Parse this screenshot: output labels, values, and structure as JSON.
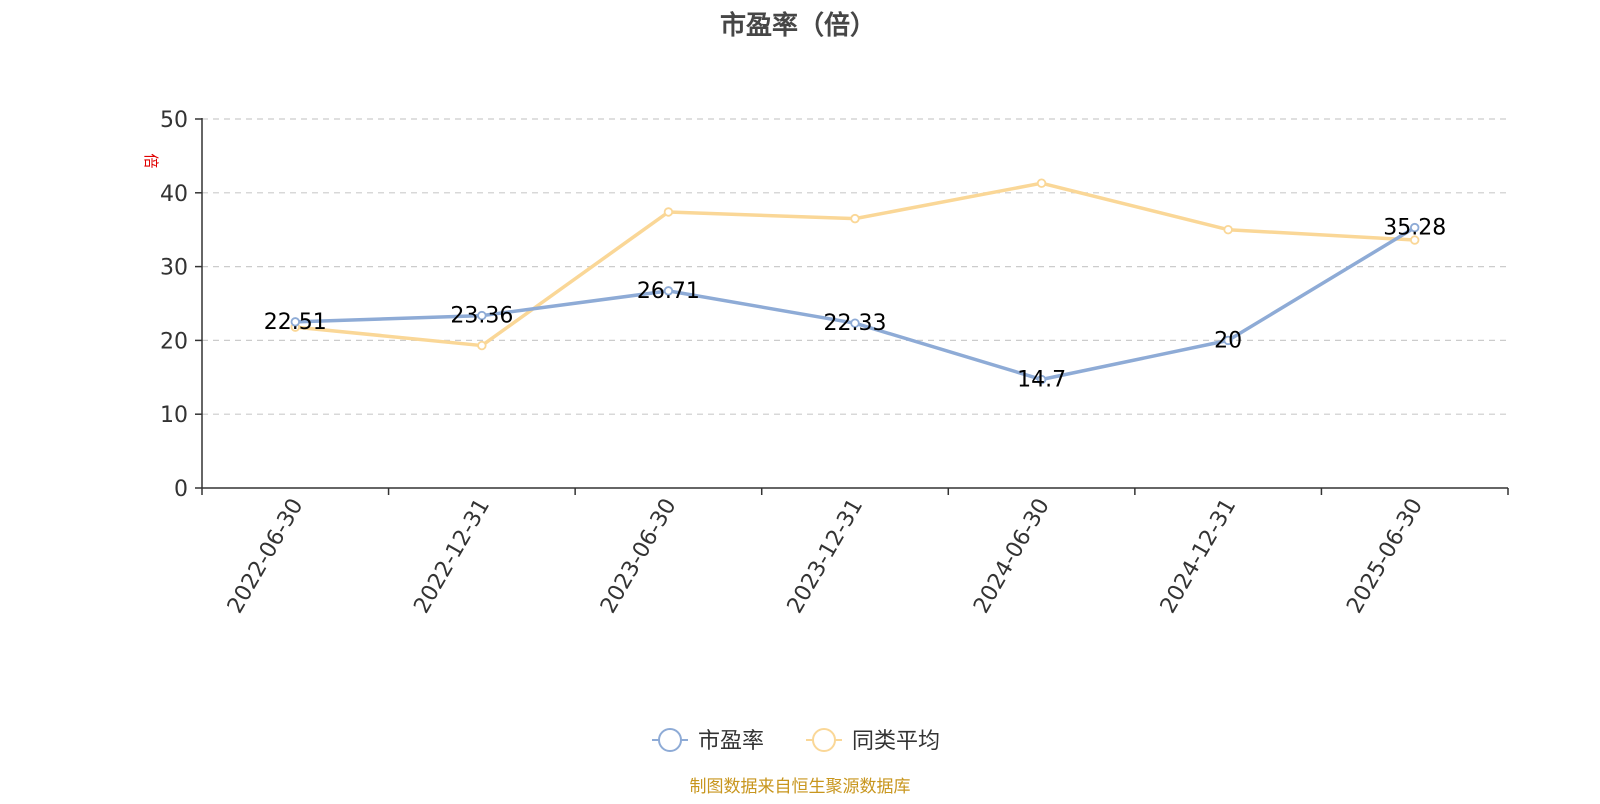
{
  "chart_data": {
    "type": "line",
    "title": "市盈率（倍）",
    "ylabel": "倍",
    "xlabel": "",
    "categories": [
      "2022-06-30",
      "2022-12-31",
      "2023-06-30",
      "2023-12-31",
      "2024-06-30",
      "2024-12-31",
      "2025-06-30"
    ],
    "ylim": [
      0,
      50
    ],
    "yticks": [
      0,
      10,
      20,
      30,
      40,
      50
    ],
    "grid": true,
    "legend_position": "bottom",
    "series": [
      {
        "name": "市盈率",
        "color": "#8eabd6",
        "values": [
          22.51,
          23.36,
          26.71,
          22.33,
          14.7,
          20,
          35.28
        ],
        "data_labels": [
          "22.51",
          "23.36",
          "26.71",
          "22.33",
          "14.7",
          "20",
          "35.28"
        ]
      },
      {
        "name": "同类平均",
        "color": "#fad797",
        "values": [
          21.8,
          19.3,
          37.4,
          36.5,
          41.3,
          35.0,
          33.6
        ]
      }
    ],
    "source": "制图数据来自恒生聚源数据库"
  }
}
